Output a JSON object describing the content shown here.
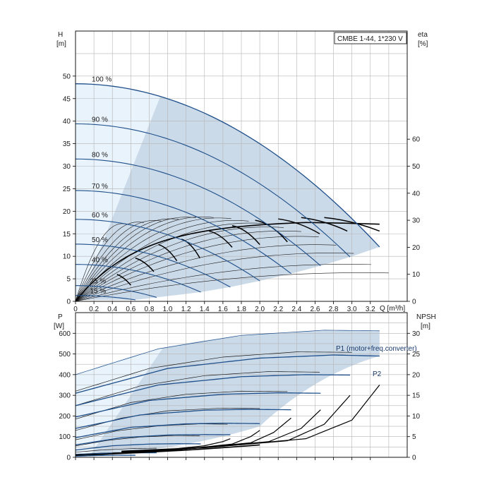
{
  "chart_data": [
    {
      "type": "line",
      "title": "CMBE 1-44, 1*230 V",
      "xlabel": "Q [m³/h]",
      "ylabel": "H",
      "ylabel_unit": "[m]",
      "y2label": "eta",
      "y2label_unit": "[%]",
      "xlim": [
        0,
        3.6
      ],
      "ylim": [
        0,
        60
      ],
      "y2lim": [
        0,
        100
      ],
      "x_ticks": [
        "0",
        "0.2",
        "0.4",
        "0.6",
        "0.8",
        "1.0",
        "1.2",
        "1.4",
        "1.6",
        "1.8",
        "2.0",
        "2.2",
        "2.4",
        "2.6",
        "2.8",
        "3.0",
        "3.2"
      ],
      "y_ticks": [
        "0",
        "5",
        "10",
        "15",
        "20",
        "25",
        "30",
        "35",
        "40",
        "45",
        "50"
      ],
      "y2_ticks": [
        "0",
        "10",
        "20",
        "30",
        "40",
        "50",
        "60"
      ],
      "grid": true,
      "head_curves": [
        {
          "label": "100 %",
          "shutoff": 48.3,
          "qmax": 3.3
        },
        {
          "label": "90 %",
          "shutoff": 39.4,
          "qmax": 2.98
        },
        {
          "label": "80 %",
          "shutoff": 31.6,
          "qmax": 2.66
        },
        {
          "label": "70 %",
          "shutoff": 24.6,
          "qmax": 2.34
        },
        {
          "label": "60 %",
          "shutoff": 18.2,
          "qmax": 2.0
        },
        {
          "label": "50 %",
          "shutoff": 12.7,
          "qmax": 1.68
        },
        {
          "label": "40 %",
          "shutoff": 8.2,
          "qmax": 1.36
        },
        {
          "label": "25 %",
          "shutoff": 3.5,
          "qmax": 0.88
        },
        {
          "label": "15 %",
          "shutoff": 1.3,
          "qmax": 0.65
        }
      ],
      "eta_curves_peak": [
        28.5,
        29,
        29.5,
        30,
        30.5,
        30.5,
        30,
        29,
        28,
        26.5,
        25,
        23,
        20,
        17,
        13,
        10
      ]
    },
    {
      "type": "line",
      "xlabel": "",
      "ylabel": "P",
      "ylabel_unit": "[W]",
      "y2label": "NPSH",
      "y2label_unit": "[m]",
      "xlim": [
        0,
        3.6
      ],
      "ylim": [
        0,
        700
      ],
      "y2lim": [
        0,
        35
      ],
      "y_ticks": [
        "0",
        "100",
        "200",
        "300",
        "400",
        "500",
        "600"
      ],
      "y2_ticks": [
        "0",
        "5",
        "10",
        "15",
        "20",
        "25",
        "30"
      ],
      "series_labels": [
        "P1 (motor+freq.converter)",
        "P2"
      ],
      "p1_curves": [
        {
          "q": [
            0,
            0.9,
            1.8,
            2.7,
            3.3
          ],
          "p": [
            400,
            525,
            590,
            615,
            612
          ]
        },
        {
          "q": [
            0,
            0.8,
            1.6,
            2.4,
            3.0
          ],
          "p": [
            320,
            430,
            485,
            510,
            508
          ]
        },
        {
          "q": [
            0,
            0.7,
            1.4,
            2.1,
            2.65
          ],
          "p": [
            250,
            345,
            395,
            415,
            412
          ]
        },
        {
          "q": [
            0,
            0.6,
            1.2,
            1.8,
            2.3
          ],
          "p": [
            185,
            265,
            305,
            320,
            318
          ]
        },
        {
          "q": [
            0,
            0.5,
            1.0,
            1.6,
            2.0
          ],
          "p": [
            130,
            190,
            225,
            238,
            236
          ]
        },
        {
          "q": [
            0,
            0.45,
            0.9,
            1.35,
            1.65
          ],
          "p": [
            85,
            128,
            152,
            162,
            160
          ]
        },
        {
          "q": [
            0,
            0.35,
            0.7,
            1.1,
            1.35
          ],
          "p": [
            55,
            82,
            98,
            106,
            104
          ]
        },
        {
          "q": [
            0,
            0.3,
            0.6,
            0.88
          ],
          "p": [
            25,
            36,
            42,
            44
          ]
        },
        {
          "q": [
            0,
            0.25,
            0.5,
            0.65
          ],
          "p": [
            15,
            20,
            23,
            24
          ]
        }
      ],
      "p2_curves": [
        {
          "q": [
            0,
            1.0,
            2.0,
            2.8,
            3.3
          ],
          "p": [
            310,
            430,
            480,
            495,
            490
          ]
        },
        {
          "q": [
            0,
            0.9,
            1.8,
            2.5,
            2.98
          ],
          "p": [
            250,
            350,
            390,
            400,
            398
          ]
        },
        {
          "q": [
            0,
            0.8,
            1.6,
            2.2,
            2.66
          ],
          "p": [
            195,
            275,
            305,
            312,
            310
          ]
        },
        {
          "q": [
            0,
            0.7,
            1.4,
            1.9,
            2.34
          ],
          "p": [
            140,
            205,
            228,
            232,
            230
          ]
        },
        {
          "q": [
            0,
            0.6,
            1.2,
            1.6,
            2.0
          ],
          "p": [
            95,
            145,
            162,
            165,
            163
          ]
        },
        {
          "q": [
            0,
            0.5,
            1.0,
            1.4,
            1.68
          ],
          "p": [
            60,
            95,
            108,
            110,
            109
          ]
        },
        {
          "q": [
            0,
            0.4,
            0.8,
            1.1,
            1.36
          ],
          "p": [
            35,
            56,
            64,
            66,
            65
          ]
        },
        {
          "q": [
            0,
            0.3,
            0.6,
            0.88
          ],
          "p": [
            12,
            19,
            22,
            22
          ]
        },
        {
          "q": [
            0,
            0.25,
            0.5,
            0.65
          ],
          "p": [
            6,
            9,
            10,
            10
          ]
        }
      ],
      "npsh_curves": [
        {
          "q": [
            0.5,
            1.5,
            2.5,
            3.0,
            3.3
          ],
          "npsh": [
            1.5,
            2.5,
            4.5,
            9,
            17.5
          ]
        },
        {
          "q": [
            0.5,
            1.4,
            2.3,
            2.7,
            2.98
          ],
          "npsh": [
            1.4,
            2.3,
            4,
            8,
            15
          ]
        },
        {
          "q": [
            0.5,
            1.3,
            2.1,
            2.45,
            2.66
          ],
          "npsh": [
            1.3,
            2.2,
            3.8,
            7,
            11.5
          ]
        },
        {
          "q": [
            0.5,
            1.2,
            1.9,
            2.15,
            2.34
          ],
          "npsh": [
            1.2,
            2.0,
            3.5,
            6,
            9.5
          ]
        },
        {
          "q": [
            0.5,
            1.1,
            1.7,
            1.9,
            2.0
          ],
          "npsh": [
            1.1,
            1.8,
            3.2,
            5,
            6.5
          ]
        },
        {
          "q": [
            0.4,
            0.9,
            1.4,
            1.6,
            1.68
          ],
          "npsh": [
            1.0,
            1.6,
            2.8,
            3.8,
            4.5
          ]
        }
      ]
    }
  ]
}
